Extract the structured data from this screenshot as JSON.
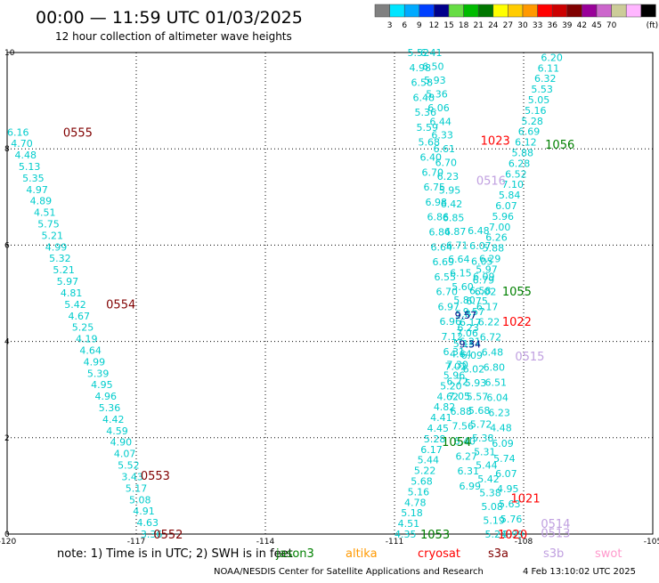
{
  "header": {
    "title": "00:00 — 11:59 UTC 01/03/2025",
    "subtitle": "12 hour collection of altimeter wave heights"
  },
  "colorbar": {
    "labels": [
      "3",
      "6",
      "9",
      "12",
      "15",
      "18",
      "21",
      "24",
      "27",
      "30",
      "33",
      "36",
      "39",
      "42",
      "45",
      "70"
    ],
    "unit": "(ft)",
    "colors": [
      "#808080",
      "#00e5ff",
      "#00aaff",
      "#0040ff",
      "#00008b",
      "#66dd44",
      "#00bb00",
      "#007700",
      "#ffff00",
      "#ffcc00",
      "#ff9900",
      "#ff0000",
      "#cc0000",
      "#800000",
      "#990099",
      "#cc66cc",
      "#cccc99",
      "#ffb6ff",
      "#000000"
    ]
  },
  "footer": {
    "note": "note:  1) Time is in UTC;  2) SWH is in feet",
    "credit": "NOAA/NESDIS Center for Satellite Applications and Research",
    "timestamp": "4 Feb 13:10:02 UTC 2025"
  },
  "legend": [
    {
      "name": "jason3",
      "color": "#008000"
    },
    {
      "name": "altika",
      "color": "#ff9900"
    },
    {
      "name": "cryosat",
      "color": "#ff0000"
    },
    {
      "name": "s3a",
      "color": "#800000"
    },
    {
      "name": "s3b",
      "color": "#c0a0e0"
    },
    {
      "name": "swot",
      "color": "#ff99cc"
    }
  ],
  "chart_data": {
    "type": "scatter",
    "xlim": [
      -120,
      -105
    ],
    "ylim": [
      0,
      10
    ],
    "x_ticks": [
      "-120",
      "-117",
      "-114",
      "-111",
      "-108",
      "-105"
    ],
    "y_ticks": [
      "0",
      "2",
      "4",
      "6",
      "8",
      "10"
    ],
    "grid": true,
    "value_color": "#00cccc",
    "track_labels": [
      {
        "text": "0555",
        "sat": "s3a",
        "color": "#800000",
        "lon": -118.7,
        "lat": 8.35
      },
      {
        "text": "0554",
        "sat": "s3a",
        "color": "#800000",
        "lon": -117.7,
        "lat": 4.78
      },
      {
        "text": "0553",
        "sat": "s3a",
        "color": "#800000",
        "lon": -116.9,
        "lat": 1.22
      },
      {
        "text": "0552",
        "sat": "s3a",
        "color": "#800000",
        "lon": -116.6,
        "lat": 0.0
      },
      {
        "text": "1023",
        "sat": "cryosat",
        "color": "#ff0000",
        "lon": -109.0,
        "lat": 8.18
      },
      {
        "text": "1056",
        "sat": "jason3",
        "color": "#008000",
        "lon": -107.5,
        "lat": 8.1
      },
      {
        "text": "0516",
        "sat": "s3b",
        "color": "#c0a0e0",
        "lon": -109.1,
        "lat": 7.35
      },
      {
        "text": "1055",
        "sat": "jason3",
        "color": "#008000",
        "lon": -108.5,
        "lat": 5.05
      },
      {
        "text": "1022",
        "sat": "cryosat",
        "color": "#ff0000",
        "lon": -108.5,
        "lat": 4.42
      },
      {
        "text": "0515",
        "sat": "s3b",
        "color": "#c0a0e0",
        "lon": -108.2,
        "lat": 3.7
      },
      {
        "text": "1054",
        "sat": "jason3",
        "color": "#008000",
        "lon": -109.9,
        "lat": 1.92
      },
      {
        "text": "1021",
        "sat": "cryosat",
        "color": "#ff0000",
        "lon": -108.3,
        "lat": 0.75
      },
      {
        "text": "0514",
        "sat": "s3b",
        "color": "#c0a0e0",
        "lon": -107.6,
        "lat": 0.22
      },
      {
        "text": "1053",
        "sat": "jason3",
        "color": "#008000",
        "lon": -110.4,
        "lat": 0.0
      },
      {
        "text": "1020",
        "sat": "cryosat",
        "color": "#ff0000",
        "lon": -108.6,
        "lat": 0.0
      },
      {
        "text": "0513",
        "sat": "s3b",
        "color": "#c0a0e0",
        "lon": -107.6,
        "lat": 0.03
      }
    ],
    "tracks": [
      {
        "name": "s3a west pass",
        "start": [
          -120.0,
          8.35
        ],
        "end": [
          -116.9,
          0.0
        ],
        "values": [
          "6.16",
          "4.70",
          "4.48",
          "5.13",
          "5.35",
          "4.97",
          "4.89",
          "4.51",
          "5.75",
          "5.21",
          "4.99",
          "5.32",
          "5.21",
          "5.97",
          "4.81",
          "5.42",
          "4.67",
          "5.25",
          "4.19",
          "4.64",
          "4.99",
          "5.39",
          "4.95",
          "4.96",
          "5.36",
          "4.42",
          "4.59",
          "4.90",
          "4.07",
          "5.52",
          "3.43",
          "5.17",
          "5.08",
          "4.91",
          "4.63",
          "3.36"
        ]
      },
      {
        "name": "descending pass A",
        "start": [
          -110.7,
          10.0
        ],
        "end": [
          -109.5,
          1.0
        ],
        "values": [
          "5.52",
          "4.98",
          "6.58",
          "6.48",
          "5.36",
          "5.59",
          "5.68",
          "6.40",
          "6.70",
          "6.75",
          "6.98",
          "6.86",
          "6.84",
          "6.64",
          "6.69",
          "6.55",
          "6.70",
          "6.97",
          "6.96",
          "7.12",
          "6.31",
          "7.02",
          "6.72",
          "7.05",
          "6.88",
          "7.56",
          "6.40",
          "6.27",
          "6.31",
          "6.99"
        ]
      },
      {
        "name": "descending pass B",
        "start": [
          -110.4,
          10.0
        ],
        "end": [
          -108.9,
          0.0
        ],
        "values": [
          "6.41",
          "6.50",
          "5.93",
          "5.36",
          "6.06",
          "6.44",
          "6.33",
          "6.61",
          "6.70",
          "6.23",
          "5.95",
          "6.42",
          "6.85",
          "6.87",
          "6.71",
          "6.64",
          "6.15",
          "5.60",
          "5.80",
          "5.87",
          "6.23",
          "6.21",
          "6.09",
          "6.02",
          "5.93",
          "5.57",
          "5.68",
          "5.72",
          "5.38",
          "5.31",
          "5.44",
          "5.42",
          "5.38",
          "5.08",
          "5.19",
          "5.24"
        ]
      },
      {
        "name": "ascending pass",
        "start": [
          -111.0,
          0.0
        ],
        "end": [
          -107.6,
          9.9
        ],
        "values": [
          "4.35",
          "4.51",
          "5.18",
          "4.78",
          "5.16",
          "5.68",
          "5.22",
          "5.44",
          "6.17",
          "5.28",
          "4.45",
          "4.41",
          "4.82",
          "4.62",
          "5.20",
          "5.96",
          "7.30",
          "4.64",
          "5.15",
          "7.06",
          "6.17",
          "9.57",
          "6.75",
          "6.58",
          "6.79",
          "5.97",
          "6.29",
          "5.88",
          "6.26",
          "7.00",
          "5.96",
          "6.07",
          "5.84",
          "7.10",
          "6.52",
          "6.28",
          "5.88",
          "6.12",
          "6.69",
          "5.28",
          "5.16",
          "5.05",
          "5.53",
          "6.32",
          "6.11",
          "6.20"
        ]
      },
      {
        "name": "descending pass C",
        "start": [
          -109.3,
          6.3
        ],
        "end": [
          -108.5,
          0.0
        ],
        "values": [
          "6.48",
          "6.07",
          "6.05",
          "6.09",
          "6.02",
          "6.17",
          "6.22",
          "6.72",
          "6.48",
          "6.80",
          "6.51",
          "6.04",
          "6.23",
          "4.48",
          "6.09",
          "5.74",
          "6.07",
          "4.95",
          "5.63",
          "5.76",
          "3.99"
        ]
      }
    ],
    "highlight_labels": [
      {
        "text": "9.57",
        "color": "#000080",
        "lon": -109.6,
        "lat": 4.55
      },
      {
        "text": "9.34",
        "color": "#000080",
        "lon": -109.5,
        "lat": 3.95
      }
    ]
  }
}
